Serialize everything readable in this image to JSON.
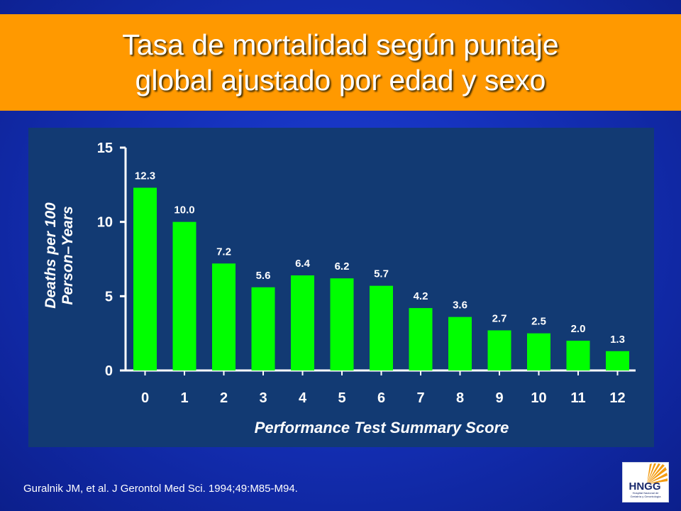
{
  "slide": {
    "title_line1": "Tasa de mortalidad según puntaje",
    "title_line2": "global ajustado por edad y sexo",
    "citation": "Guralnik JM, et al. J Gerontol Med Sci. 1994;49:M85-M94.",
    "logo": {
      "text": "HNGG",
      "subtext1": "Hospital Nacional de",
      "subtext2": "Geriatría y Gerontología"
    }
  },
  "colors": {
    "background": "#1430b8",
    "title_bar": "#ff9900",
    "chart_panel": "#123a73",
    "bar": "#00ff00",
    "text": "#ffffff"
  },
  "chart_data": {
    "type": "bar",
    "categories": [
      "0",
      "1",
      "2",
      "3",
      "4",
      "5",
      "6",
      "7",
      "8",
      "9",
      "10",
      "11",
      "12"
    ],
    "values": [
      12.3,
      10.0,
      7.2,
      5.6,
      6.4,
      6.2,
      5.7,
      4.2,
      3.6,
      2.7,
      2.5,
      2.0,
      1.3
    ],
    "value_labels": [
      "12.3",
      "10.0",
      "7.2",
      "5.6",
      "6.4",
      "6.2",
      "5.7",
      "4.2",
      "3.6",
      "2.7",
      "2.5",
      "2.0",
      "1.3"
    ],
    "ylabel_line1": "Deaths per 100",
    "ylabel_line2": "Person–Years",
    "xlabel": "Performance Test Summary Score",
    "ylim": [
      0,
      15
    ],
    "yticks": [
      "0",
      "5",
      "10",
      "15"
    ],
    "yticks_values": [
      0,
      5,
      10,
      15
    ],
    "grid": false,
    "legend": "none"
  }
}
